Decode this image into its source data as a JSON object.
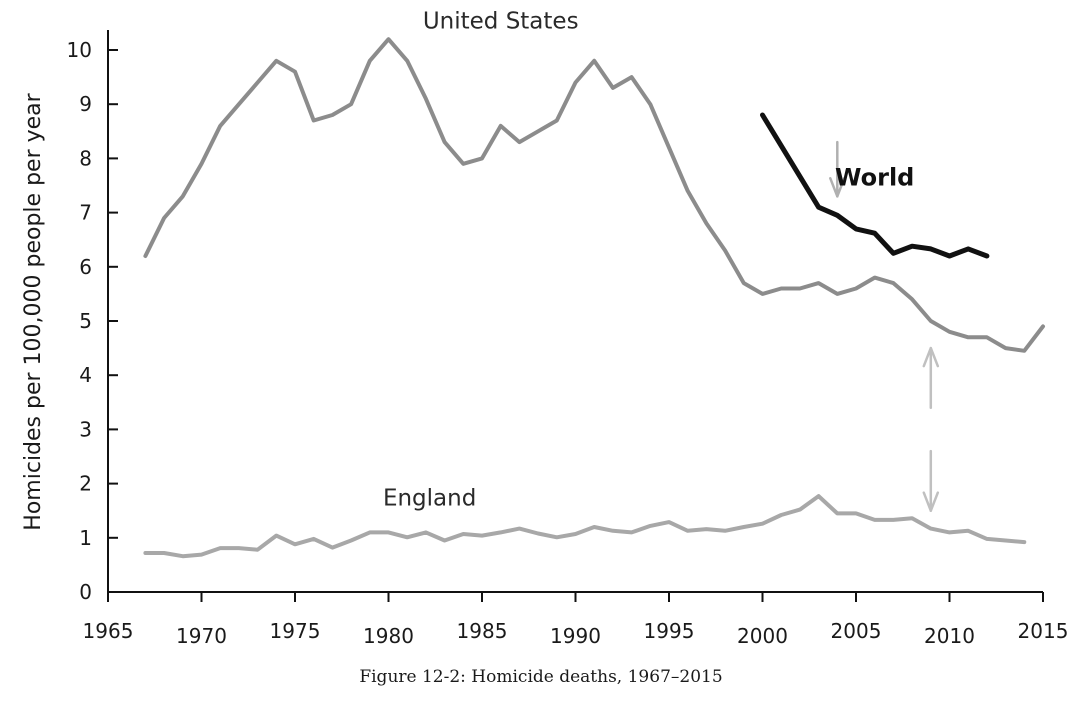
{
  "chart_data": {
    "type": "line",
    "title": "",
    "caption": "Figure 12-2: Homicide deaths, 1967–2015",
    "xlabel": "",
    "ylabel": "Homicides per 100,000 people per year",
    "xlim": [
      1965,
      2015
    ],
    "ylim": [
      0,
      10
    ],
    "x_ticks": [
      1965,
      1970,
      1975,
      1980,
      1985,
      1990,
      1995,
      2000,
      2005,
      2010,
      2015
    ],
    "x_tick_labels": [
      "1965",
      "1970",
      "1975",
      "1980",
      "1985",
      "1990",
      "1995",
      "2000",
      "2005",
      "2010",
      "2015"
    ],
    "y_ticks": [
      0,
      1,
      2,
      3,
      4,
      5,
      6,
      7,
      8,
      9,
      10
    ],
    "y_tick_labels": [
      "0",
      "1",
      "2",
      "3",
      "4",
      "5",
      "6",
      "7",
      "8",
      "9",
      "10"
    ],
    "grid": false,
    "legend": "none",
    "series": [
      {
        "name": "United States",
        "color": "#8c8c8c",
        "x": [
          1967,
          1968,
          1969,
          1970,
          1971,
          1972,
          1973,
          1974,
          1975,
          1976,
          1977,
          1978,
          1979,
          1980,
          1981,
          1982,
          1983,
          1984,
          1985,
          1986,
          1987,
          1988,
          1989,
          1990,
          1991,
          1992,
          1993,
          1994,
          1995,
          1996,
          1997,
          1998,
          1999,
          2000,
          2001,
          2002,
          2003,
          2004,
          2005,
          2006,
          2007,
          2008,
          2009,
          2010,
          2011,
          2012,
          2013,
          2014,
          2015
        ],
        "values": [
          6.2,
          6.9,
          7.3,
          7.9,
          8.6,
          9.0,
          9.4,
          9.8,
          9.6,
          8.7,
          8.8,
          9.0,
          9.8,
          10.2,
          9.8,
          9.1,
          8.3,
          7.9,
          8.0,
          8.6,
          8.3,
          8.5,
          8.7,
          9.4,
          9.8,
          9.3,
          9.5,
          9.0,
          8.2,
          7.4,
          6.8,
          6.3,
          5.7,
          5.5,
          5.6,
          5.6,
          5.7,
          5.5,
          5.6,
          5.8,
          5.7,
          5.4,
          5.0,
          4.8,
          4.7,
          4.7,
          4.5,
          4.45,
          4.9
        ]
      },
      {
        "name": "World",
        "color": "#111111",
        "x": [
          2000,
          2003,
          2004,
          2005,
          2006,
          2007,
          2008,
          2009,
          2010,
          2011,
          2012
        ],
        "values": [
          8.8,
          7.1,
          6.95,
          6.7,
          6.62,
          6.25,
          6.38,
          6.33,
          6.2,
          6.33,
          6.2
        ]
      },
      {
        "name": "England",
        "color": "#a8a8a8",
        "x": [
          1967,
          1968,
          1969,
          1970,
          1971,
          1972,
          1973,
          1974,
          1975,
          1976,
          1977,
          1978,
          1979,
          1980,
          1981,
          1982,
          1983,
          1984,
          1985,
          1986,
          1987,
          1988,
          1989,
          1990,
          1991,
          1992,
          1993,
          1994,
          1995,
          1996,
          1997,
          1998,
          1999,
          2000,
          2001,
          2002,
          2003,
          2004,
          2005,
          2006,
          2007,
          2008,
          2009,
          2010,
          2011,
          2012,
          2013,
          2014
        ],
        "values": [
          0.72,
          0.72,
          0.66,
          0.69,
          0.81,
          0.81,
          0.78,
          1.04,
          0.88,
          0.98,
          0.82,
          0.95,
          1.1,
          1.1,
          1.01,
          1.1,
          0.95,
          1.07,
          1.04,
          1.1,
          1.17,
          1.08,
          1.01,
          1.07,
          1.2,
          1.13,
          1.1,
          1.22,
          1.29,
          1.13,
          1.16,
          1.13,
          1.2,
          1.26,
          1.42,
          1.52,
          1.77,
          1.45,
          1.45,
          1.33,
          1.33,
          1.36,
          1.17,
          1.1,
          1.13,
          0.98,
          0.95,
          0.92
        ]
      }
    ],
    "series_labels": [
      {
        "text": "United States",
        "x": 1986.0,
        "y": 10.4,
        "bold": false
      },
      {
        "text": "World",
        "x": 2006.0,
        "y": 7.5,
        "bold": true
      },
      {
        "text": "England",
        "x": 1982.2,
        "y": 1.6,
        "bold": false
      }
    ],
    "annotations": [
      {
        "type": "arrow-down",
        "x": 2004,
        "y_from": 8.3,
        "y_to": 7.3,
        "color": "#b0b0b0"
      },
      {
        "type": "arrow-up",
        "x": 2009,
        "y_from": 3.4,
        "y_to": 4.5,
        "color": "#c0c0c0"
      },
      {
        "type": "arrow-down",
        "x": 2009,
        "y_from": 2.6,
        "y_to": 1.5,
        "color": "#c0c0c0"
      }
    ]
  }
}
